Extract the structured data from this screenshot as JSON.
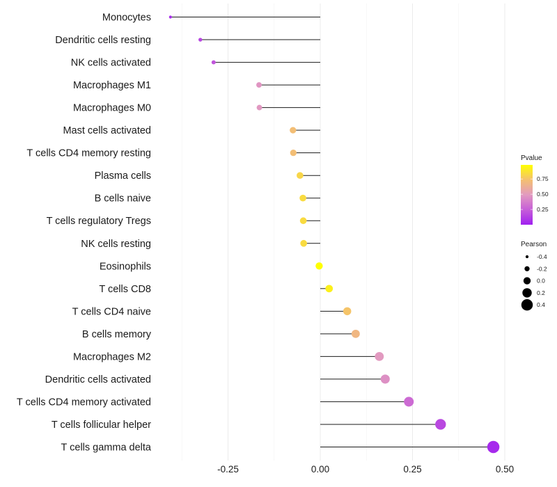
{
  "chart_data": {
    "type": "lollipop",
    "title": "",
    "xlabel": "",
    "ylabel": "",
    "xlim": [
      -0.44,
      0.53
    ],
    "x_ticks": [
      -0.25,
      0.0,
      0.25,
      0.5
    ],
    "x_tick_labels": [
      "-0.25",
      "0.00",
      "0.25",
      "0.50"
    ],
    "x_minor_gridlines": [
      -0.375,
      -0.125,
      0.125,
      0.375
    ],
    "grid": true,
    "categories": [
      "Monocytes",
      "Dendritic cells resting",
      "NK cells activated",
      "Macrophages M1",
      "Macrophages M0",
      "Mast cells activated",
      "T cells CD4 memory resting",
      "Plasma cells",
      "B cells naive",
      "T cells regulatory  Tregs ",
      "NK cells resting",
      "Eosinophils",
      "T cells CD8",
      "T cells CD4 naive",
      "B cells memory",
      "Macrophages M2",
      "Dendritic cells activated",
      "T cells CD4 memory activated",
      "T cells follicular helper",
      "T cells gamma delta"
    ],
    "pearson": [
      -0.406,
      -0.325,
      -0.289,
      -0.166,
      -0.165,
      -0.074,
      -0.073,
      -0.055,
      -0.047,
      -0.046,
      -0.045,
      -0.003,
      0.024,
      0.073,
      0.096,
      0.16,
      0.176,
      0.24,
      0.326,
      0.469
    ],
    "pvalue": [
      0.05,
      0.15,
      0.21,
      0.47,
      0.48,
      0.72,
      0.72,
      0.82,
      0.84,
      0.84,
      0.84,
      0.98,
      0.92,
      0.75,
      0.68,
      0.49,
      0.45,
      0.3,
      0.16,
      0.04
    ],
    "legend": {
      "color": {
        "title": "Pvalue",
        "ticks": [
          0.75,
          0.5,
          0.25
        ],
        "tick_labels": [
          "0.75",
          "0.50",
          "0.25"
        ],
        "range": [
          0.0,
          0.98
        ],
        "colors": [
          "#a020f0",
          "#e29ac0",
          "#ffff00"
        ]
      },
      "size": {
        "title": "Pearson",
        "values": [
          -0.4,
          -0.2,
          0.0,
          0.2,
          0.4
        ],
        "labels": [
          "-0.4",
          "-0.2",
          "0.0",
          "0.2",
          "0.4"
        ]
      },
      "position": "right"
    }
  }
}
